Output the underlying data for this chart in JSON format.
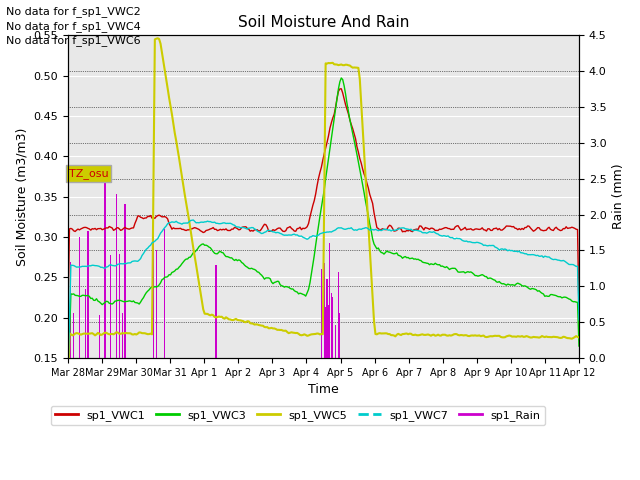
{
  "title": "Soil Moisture And Rain",
  "xlabel": "Time",
  "ylabel_left": "Soil Moisture (m3/m3)",
  "ylabel_right": "Rain (mm)",
  "ylim_left": [
    0.15,
    0.55
  ],
  "ylim_right": [
    0.0,
    4.5
  ],
  "bg_color": "#e8e8e8",
  "no_data_texts": [
    "No data for f_sp1_VWC2",
    "No data for f_sp1_VWC4",
    "No data for f_sp1_VWC6"
  ],
  "tz_label": "TZ_osu",
  "tz_bg": "#cccc00",
  "tz_fg": "#cc0000",
  "colors": {
    "VWC1": "#cc0000",
    "VWC3": "#00cc00",
    "VWC5": "#cccc00",
    "VWC7": "#00cccc",
    "Rain": "#cc00cc"
  },
  "legend_labels": [
    "sp1_VWC1",
    "sp1_VWC3",
    "sp1_VWC5",
    "sp1_VWC7",
    "sp1_Rain"
  ],
  "xtick_labels": [
    "Mar 28",
    "Mar 29",
    "Mar 30",
    "Mar 31",
    "Apr 1",
    "Apr 2",
    "Apr 3",
    "Apr 4",
    "Apr 5",
    "Apr 6",
    "Apr 7",
    "Apr 8",
    "Apr 9",
    "Apr 10",
    "Apr 11",
    "Apr 12"
  ]
}
